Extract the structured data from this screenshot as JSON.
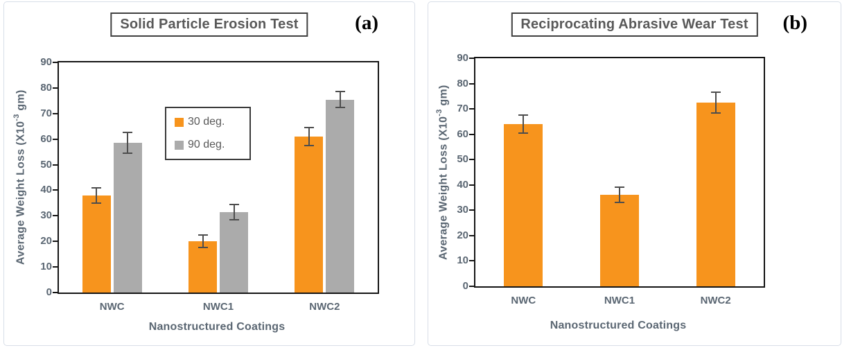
{
  "chart_data": [
    {
      "type": "bar",
      "panel_tag": "(a)",
      "title": "Solid Particle Erosion Test",
      "categories": [
        "NWC",
        "NWC1",
        "NWC2"
      ],
      "series": [
        {
          "name": "30 deg.",
          "color": "#F7941D",
          "values": [
            38,
            20,
            61
          ],
          "errors": [
            3,
            2.5,
            3.5
          ]
        },
        {
          "name": "90 deg.",
          "color": "#ABABAB",
          "values": [
            58.5,
            31.5,
            75.5
          ],
          "errors": [
            4,
            3,
            3
          ]
        }
      ],
      "xlabel": "Nanostructured Coatings",
      "ylabel": "Average Weight Loss (X10-3 gm)",
      "ylabel_parts": {
        "prefix": "Average Weight Loss (X10",
        "superscript": "-3",
        "suffix": " gm)"
      },
      "ylim": [
        0,
        90
      ],
      "ytick_step": 10,
      "grid": false,
      "legend": {
        "visible": true,
        "position": "inside-left-center"
      }
    },
    {
      "type": "bar",
      "panel_tag": "(b)",
      "title": "Reciprocating Abrasive Wear Test",
      "categories": [
        "NWC",
        "NWC1",
        "NWC2"
      ],
      "series": [
        {
          "color": "#F7941D",
          "values": [
            64,
            36,
            72.5
          ],
          "errors": [
            3.5,
            3,
            4
          ]
        }
      ],
      "xlabel": "Nanostructured Coatings",
      "ylabel": "Average Weight Loss (X10-3 gm)",
      "ylabel_parts": {
        "prefix": "Average Weight Loss (X10",
        "superscript": "-3",
        "suffix": " gm)"
      },
      "ylim": [
        0,
        90
      ],
      "ytick_step": 10,
      "grid": false,
      "legend": {
        "visible": false
      }
    }
  ],
  "colors": {
    "bar_orange": "#F7941D",
    "bar_gray": "#ABABAB",
    "axis_text": "#5a6672",
    "title_text": "#595959",
    "plot_border": "#141414",
    "panel_border": "#d8dee8",
    "error_bar": "#4d4d4d"
  }
}
